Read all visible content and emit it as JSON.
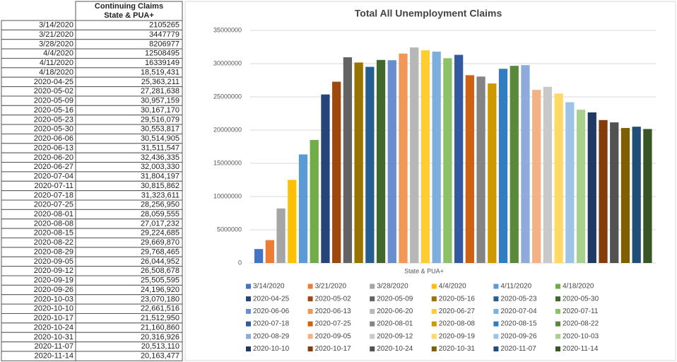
{
  "table": {
    "header": [
      "Continuing Claims",
      "State & PUA+"
    ],
    "rows": [
      [
        "3/14/2020",
        "2105265"
      ],
      [
        "3/21/2020",
        "3447779"
      ],
      [
        "3/28/2020",
        "8206977"
      ],
      [
        "4/4/2020",
        "12508495"
      ],
      [
        "4/11/2020",
        "16339149"
      ],
      [
        "4/18/2020",
        "18,519,431"
      ],
      [
        "2020-04-25",
        "25,363,211"
      ],
      [
        "2020-05-02",
        "27,281,638"
      ],
      [
        "2020-05-09",
        "30,957,159"
      ],
      [
        "2020-05-16",
        "30,167,170"
      ],
      [
        "2020-05-23",
        "29,516,079"
      ],
      [
        "2020-05-30",
        "30,553,817"
      ],
      [
        "2020-06-06",
        "30,514,905"
      ],
      [
        "2020-06-13",
        "31,511,547"
      ],
      [
        "2020-06-20",
        "32,436,335"
      ],
      [
        "2020-06-27",
        "32,003,330"
      ],
      [
        "2020-07-04",
        "31,804,197"
      ],
      [
        "2020-07-11",
        "30,815,862"
      ],
      [
        "2020-07-18",
        "31,323,611"
      ],
      [
        "2020-07-25",
        "28,256,950"
      ],
      [
        "2020-08-01",
        "28,059,555"
      ],
      [
        "2020-08-08",
        "27,017,232"
      ],
      [
        "2020-08-15",
        "29,224,685"
      ],
      [
        "2020-08-22",
        "29,669,870"
      ],
      [
        "2020-08-29",
        "29,768,465"
      ],
      [
        "2020-09-05",
        "26,044,952"
      ],
      [
        "2020-09-12",
        "26,508,678"
      ],
      [
        "2020-09-19",
        "25,505,595"
      ],
      [
        "2020-09-26",
        "24,196,920"
      ],
      [
        "2020-10-03",
        "23,070,180"
      ],
      [
        "2020-10-10",
        "22,661,516"
      ],
      [
        "2020-10-17",
        "21,512,950"
      ],
      [
        "2020-10-24",
        "21,160,860"
      ],
      [
        "2020-10-31",
        "20,316,926"
      ],
      [
        "2020-11-07",
        "20,513,110"
      ],
      [
        "2020-11-14",
        "20,163,477"
      ]
    ]
  },
  "chart_data": {
    "type": "bar",
    "title": "Total All Unemployment Claims",
    "x_label": "State & PUA+",
    "ylim": [
      0,
      35000000
    ],
    "yticks": [
      0,
      5000000,
      10000000,
      15000000,
      20000000,
      25000000,
      30000000,
      35000000
    ],
    "grid": true,
    "series": [
      {
        "name": "3/14/2020",
        "color": "#4472c4",
        "values": [
          2105265
        ]
      },
      {
        "name": "3/21/2020",
        "color": "#ed7d31",
        "values": [
          3447779
        ]
      },
      {
        "name": "3/28/2020",
        "color": "#a5a5a5",
        "values": [
          8206977
        ]
      },
      {
        "name": "4/4/2020",
        "color": "#ffc000",
        "values": [
          12508495
        ]
      },
      {
        "name": "4/11/2020",
        "color": "#5b9bd5",
        "values": [
          16339149
        ]
      },
      {
        "name": "4/18/2020",
        "color": "#70ad47",
        "values": [
          18519431
        ]
      },
      {
        "name": "2020-04-25",
        "color": "#264478",
        "values": [
          25363211
        ]
      },
      {
        "name": "2020-05-02",
        "color": "#9e480e",
        "values": [
          27281638
        ]
      },
      {
        "name": "2020-05-09",
        "color": "#636363",
        "values": [
          30957159
        ]
      },
      {
        "name": "2020-05-16",
        "color": "#997300",
        "values": [
          30167170
        ]
      },
      {
        "name": "2020-05-23",
        "color": "#255e91",
        "values": [
          29516079
        ]
      },
      {
        "name": "2020-05-30",
        "color": "#43682b",
        "values": [
          30553817
        ]
      },
      {
        "name": "2020-06-06",
        "color": "#698ed0",
        "values": [
          30514905
        ]
      },
      {
        "name": "2020-06-13",
        "color": "#f1975a",
        "values": [
          31511547
        ]
      },
      {
        "name": "2020-06-20",
        "color": "#b7b7b7",
        "values": [
          32436335
        ]
      },
      {
        "name": "2020-06-27",
        "color": "#ffcd33",
        "values": [
          32003330
        ]
      },
      {
        "name": "2020-07-04",
        "color": "#7cafdd",
        "values": [
          31804197
        ]
      },
      {
        "name": "2020-07-11",
        "color": "#8cc168",
        "values": [
          30815862
        ]
      },
      {
        "name": "2020-07-18",
        "color": "#335aa1",
        "values": [
          31323611
        ]
      },
      {
        "name": "2020-07-25",
        "color": "#d26012",
        "values": [
          28256950
        ]
      },
      {
        "name": "2020-08-01",
        "color": "#848484",
        "values": [
          28059555
        ]
      },
      {
        "name": "2020-08-08",
        "color": "#cc9a00",
        "values": [
          27017232
        ]
      },
      {
        "name": "2020-08-15",
        "color": "#327dc2",
        "values": [
          29224685
        ]
      },
      {
        "name": "2020-08-22",
        "color": "#5a8a39",
        "values": [
          29669870
        ]
      },
      {
        "name": "2020-08-29",
        "color": "#8faadc",
        "values": [
          29768465
        ]
      },
      {
        "name": "2020-09-05",
        "color": "#f4b183",
        "values": [
          26044952
        ]
      },
      {
        "name": "2020-09-12",
        "color": "#c9c9c9",
        "values": [
          26508678
        ]
      },
      {
        "name": "2020-09-19",
        "color": "#ffd966",
        "values": [
          25505595
        ]
      },
      {
        "name": "2020-09-26",
        "color": "#9dc3e6",
        "values": [
          24196920
        ]
      },
      {
        "name": "2020-10-03",
        "color": "#a9d18e",
        "values": [
          23070180
        ]
      },
      {
        "name": "2020-10-10",
        "color": "#203864",
        "values": [
          22661516
        ]
      },
      {
        "name": "2020-10-17",
        "color": "#843c0c",
        "values": [
          21512950
        ]
      },
      {
        "name": "2020-10-24",
        "color": "#525252",
        "values": [
          21160860
        ]
      },
      {
        "name": "2020-10-31",
        "color": "#7f6000",
        "values": [
          20316926
        ]
      },
      {
        "name": "2020-11-07",
        "color": "#1f4e79",
        "values": [
          20513110
        ]
      },
      {
        "name": "2020-11-14",
        "color": "#375623",
        "values": [
          20163477
        ]
      }
    ]
  }
}
